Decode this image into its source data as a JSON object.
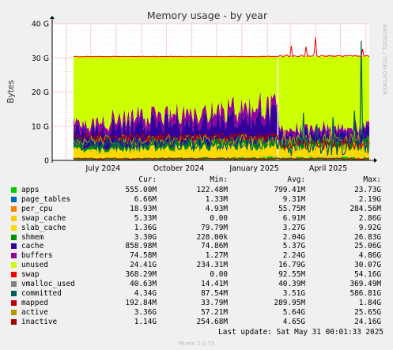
{
  "chart_data": {
    "type": "area",
    "title": "Memory usage - by year",
    "ylabel": "Bytes",
    "ylim": [
      0,
      40
    ],
    "y_unit": "G",
    "y_ticks": [
      "0",
      "10 G",
      "20 G",
      "30 G",
      "40 G"
    ],
    "x_ticks": [
      "July 2024",
      "October 2024",
      "January 2025",
      "April 2025"
    ],
    "x_range": [
      "2024-05-15",
      "2025-06-05"
    ],
    "data_start": "2024-06-10",
    "grid": true,
    "stacked": true,
    "watermark": "RRDTOOL / TOBI OETIKER",
    "columns": [
      "Cur:",
      "Min:",
      "Avg:",
      "Max:"
    ],
    "series": [
      {
        "name": "apps",
        "color": "#00cc00",
        "cur": "555.00M",
        "min": "122.48M",
        "avg": "799.41M",
        "max": "23.73G"
      },
      {
        "name": "page_tables",
        "color": "#0066b3",
        "cur": "6.66M",
        "min": "1.33M",
        "avg": "9.31M",
        "max": "2.19G"
      },
      {
        "name": "per_cpu",
        "color": "#ff8000",
        "cur": "18.93M",
        "min": "4.93M",
        "avg": "55.75M",
        "max": "284.56M"
      },
      {
        "name": "swap_cache",
        "color": "#ffcc00",
        "cur": "5.33M",
        "min": "0.00",
        "avg": "6.91M",
        "max": "2.86G"
      },
      {
        "name": "slab_cache",
        "color": "#ffd900",
        "cur": "1.36G",
        "min": "79.79M",
        "avg": "3.27G",
        "max": "9.92G"
      },
      {
        "name": "shmem",
        "color": "#008f00",
        "cur": "3.30G",
        "min": "228.00k",
        "avg": "2.04G",
        "max": "26.83G"
      },
      {
        "name": "cache",
        "color": "#330099",
        "cur": "858.98M",
        "min": "74.86M",
        "avg": "5.37G",
        "max": "25.06G"
      },
      {
        "name": "buffers",
        "color": "#990099",
        "cur": "74.58M",
        "min": "1.27M",
        "avg": "2.24G",
        "max": "4.86G"
      },
      {
        "name": "unused",
        "color": "#ccff00",
        "cur": "24.41G",
        "min": "234.31M",
        "avg": "16.79G",
        "max": "30.07G"
      },
      {
        "name": "swap",
        "color": "#ff0000",
        "cur": "368.29M",
        "min": "0.00",
        "avg": "92.55M",
        "max": "54.16G"
      },
      {
        "name": "vmalloc_used",
        "color": "#808080",
        "cur": "40.63M",
        "min": "14.41M",
        "avg": "40.39M",
        "max": "369.49M"
      },
      {
        "name": "committed",
        "color": "#005d57",
        "cur": "4.34G",
        "min": "87.54M",
        "avg": "3.51G",
        "max": "586.81G"
      },
      {
        "name": "mapped",
        "color": "#c00000",
        "cur": "192.84M",
        "min": "33.79M",
        "avg": "289.95M",
        "max": "1.84G"
      },
      {
        "name": "active",
        "color": "#b89600",
        "cur": "3.36G",
        "min": "57.21M",
        "avg": "5.64G",
        "max": "25.65G"
      },
      {
        "name": "inactive",
        "color": "#aa0000",
        "cur": "1.14G",
        "min": "254.68M",
        "avg": "4.65G",
        "max": "24.16G"
      }
    ]
  },
  "footer": {
    "last_update": "Last update: Sat May 31 00:01:33 2025",
    "munin": "Munin 2.0.73"
  }
}
